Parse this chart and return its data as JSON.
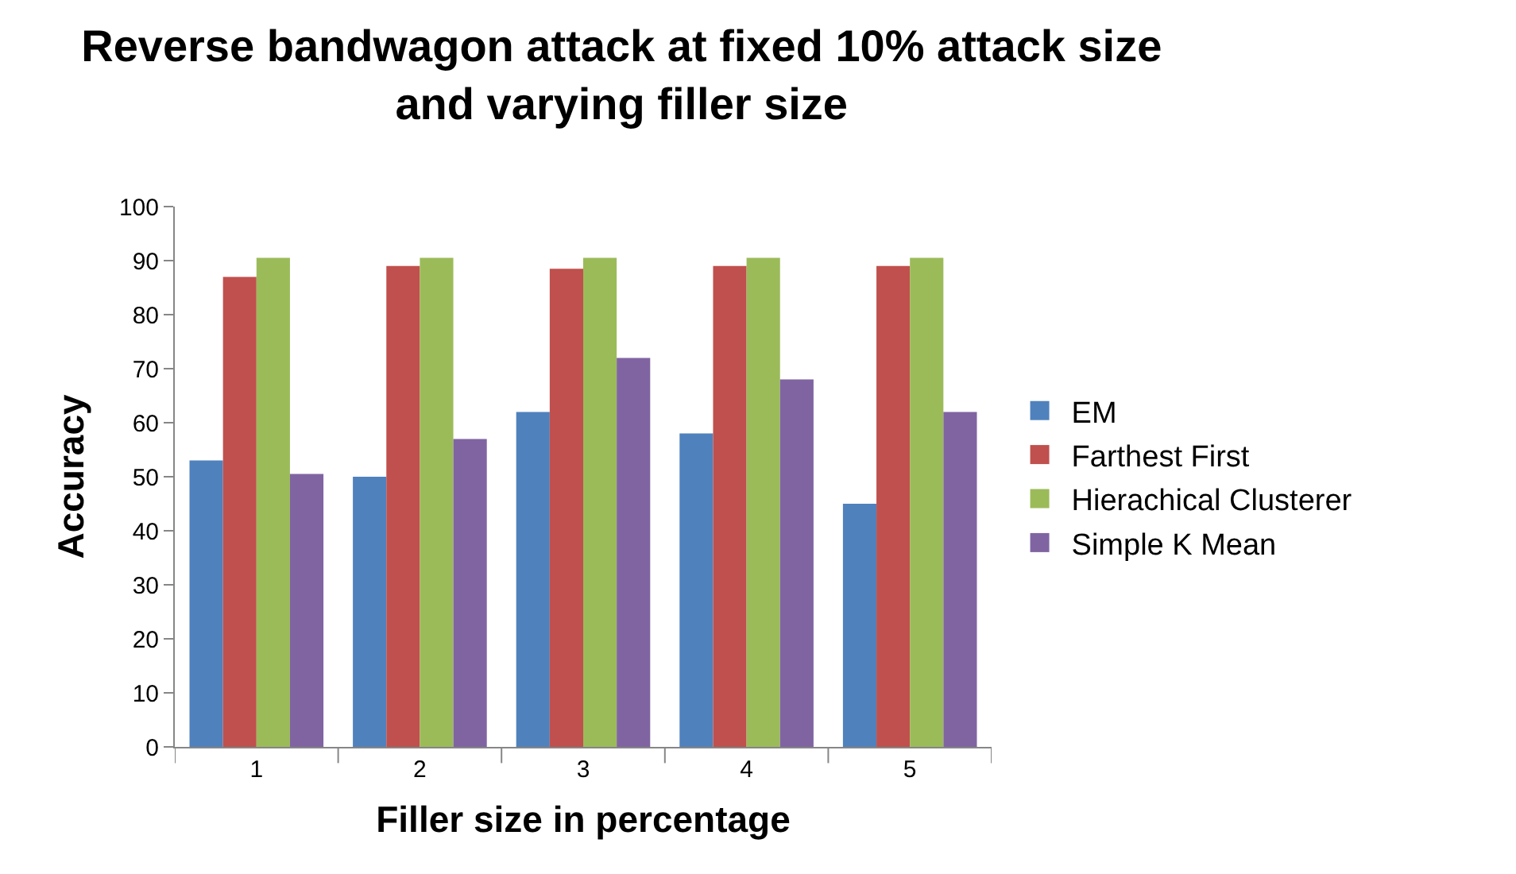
{
  "chart_data": {
    "type": "bar",
    "title": "Reverse bandwagon attack at fixed 10% attack size\nand varying filler size",
    "xlabel": "Filler size in percentage",
    "ylabel": "Accuracy",
    "categories": [
      "1",
      "2",
      "3",
      "4",
      "5"
    ],
    "series": [
      {
        "name": "EM",
        "color": "#4f81bd",
        "values": [
          53,
          50,
          62,
          58,
          45
        ]
      },
      {
        "name": "Farthest First",
        "color": "#c0504d",
        "values": [
          87,
          89,
          88.5,
          89,
          89
        ]
      },
      {
        "name": "Hierachical Clusterer",
        "color": "#9bbb59",
        "values": [
          90.5,
          90.5,
          90.5,
          90.5,
          90.5
        ]
      },
      {
        "name": "Simple K Mean",
        "color": "#8064a2",
        "values": [
          50.5,
          57,
          72,
          68,
          62
        ]
      }
    ],
    "ylim": [
      0,
      100
    ],
    "yticks": [
      0,
      10,
      20,
      30,
      40,
      50,
      60,
      70,
      80,
      90,
      100
    ],
    "legend": "right"
  }
}
